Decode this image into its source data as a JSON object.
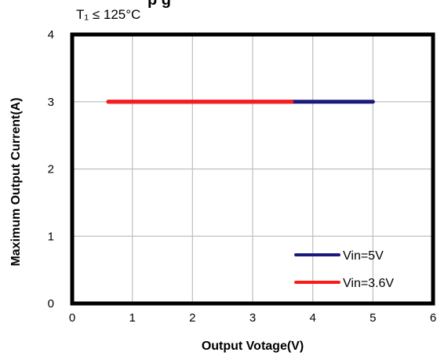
{
  "chart_data": {
    "type": "line",
    "title": "",
    "title_fragment": "p      g",
    "annotation": "T₁ ≤ 125°C",
    "xlabel": "Output  Votage(V)",
    "ylabel": "Maximum Output Current(A)",
    "xlim": [
      0,
      6
    ],
    "ylim": [
      0,
      4
    ],
    "x_ticks": [
      "0",
      "1",
      "2",
      "3",
      "4",
      "5",
      "6"
    ],
    "y_ticks": [
      "0",
      "1",
      "2",
      "3",
      "4"
    ],
    "grid": true,
    "legend_position": "bottom-right",
    "series": [
      {
        "name": "Vin=5V",
        "color": "#1a1a7a",
        "x": [
          0.6,
          5.0
        ],
        "y": [
          3,
          3
        ]
      },
      {
        "name": "Vin=3.6V",
        "color": "#ff1a1a",
        "x": [
          0.6,
          3.65
        ],
        "y": [
          3,
          3
        ]
      }
    ]
  }
}
